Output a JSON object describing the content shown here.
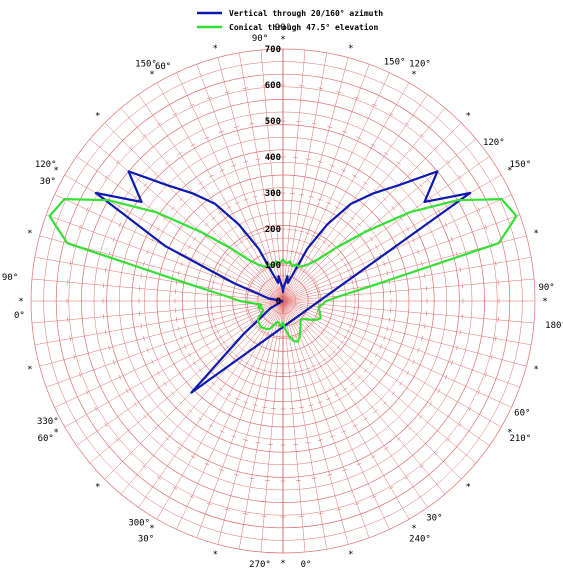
{
  "chart_data": {
    "type": "polar-line",
    "title": "",
    "radial_ticks": [
      0,
      100,
      200,
      300,
      400,
      500,
      600,
      700
    ],
    "radial_max": 700,
    "radial_tick_labels": [
      "0",
      "100",
      "200",
      "300",
      "400",
      "500",
      "600",
      "700"
    ],
    "legend_placement": "top-center",
    "grid": true,
    "series": [
      {
        "name": "Vertical through 20/160° azimuth",
        "color": "#0c1ab0",
        "points": [
          [
            30,
            600
          ],
          [
            35,
            480
          ],
          [
            40,
            560
          ],
          [
            45,
            455
          ],
          [
            50,
            390
          ],
          [
            55,
            330
          ],
          [
            60,
            245
          ],
          [
            65,
            160
          ],
          [
            70,
            75
          ],
          [
            75,
            52
          ],
          [
            80,
            70
          ],
          [
            85,
            44
          ],
          [
            88,
            35
          ],
          [
            90,
            25
          ],
          [
            92,
            35
          ],
          [
            95,
            44
          ],
          [
            100,
            70
          ],
          [
            105,
            52
          ],
          [
            110,
            75
          ],
          [
            115,
            160
          ],
          [
            120,
            245
          ],
          [
            125,
            330
          ],
          [
            130,
            390
          ],
          [
            135,
            455
          ],
          [
            140,
            560
          ],
          [
            145,
            480
          ],
          [
            150,
            600
          ],
          [
            155,
            360
          ],
          [
            160,
            145
          ],
          [
            170,
            40
          ],
          [
            180,
            2
          ],
          [
            190,
            2
          ],
          [
            200,
            2
          ],
          [
            210,
            40
          ],
          [
            220,
            145
          ],
          [
            225,
            360
          ]
        ]
      },
      {
        "name": "Conical through 47.5° elevation",
        "color": "#33e033",
        "points": [
          [
            0,
            120
          ],
          [
            5,
            160
          ],
          [
            10,
            260
          ],
          [
            15,
            620
          ],
          [
            18,
            660
          ],
          [
            20,
            690
          ],
          [
            25,
            670
          ],
          [
            30,
            560
          ],
          [
            35,
            430
          ],
          [
            40,
            300
          ],
          [
            45,
            210
          ],
          [
            50,
            150
          ],
          [
            55,
            125
          ],
          [
            60,
            112
          ],
          [
            65,
            105
          ],
          [
            70,
            108
          ],
          [
            75,
            100
          ],
          [
            80,
            112
          ],
          [
            85,
            105
          ],
          [
            90,
            115
          ],
          [
            95,
            105
          ],
          [
            100,
            112
          ],
          [
            105,
            100
          ],
          [
            110,
            108
          ],
          [
            115,
            105
          ],
          [
            120,
            112
          ],
          [
            125,
            125
          ],
          [
            130,
            150
          ],
          [
            135,
            210
          ],
          [
            140,
            300
          ],
          [
            145,
            430
          ],
          [
            150,
            560
          ],
          [
            155,
            670
          ],
          [
            160,
            690
          ],
          [
            162,
            660
          ],
          [
            165,
            620
          ],
          [
            170,
            260
          ],
          [
            175,
            160
          ],
          [
            180,
            120
          ],
          [
            185,
            80
          ],
          [
            190,
            60
          ],
          [
            195,
            72
          ],
          [
            200,
            62
          ],
          [
            205,
            60
          ],
          [
            210,
            70
          ],
          [
            215,
            85
          ],
          [
            220,
            90
          ],
          [
            225,
            92
          ],
          [
            230,
            95
          ],
          [
            235,
            92
          ],
          [
            240,
            90
          ],
          [
            245,
            85
          ],
          [
            250,
            70
          ],
          [
            255,
            60
          ],
          [
            260,
            62
          ],
          [
            265,
            72
          ],
          [
            270,
            60
          ],
          [
            275,
            80
          ],
          [
            280,
            100
          ],
          [
            285,
            115
          ],
          [
            290,
            120
          ],
          [
            295,
            110
          ],
          [
            300,
            95
          ],
          [
            305,
            85
          ],
          [
            310,
            75
          ],
          [
            315,
            72
          ],
          [
            320,
            78
          ],
          [
            325,
            90
          ],
          [
            330,
            105
          ],
          [
            335,
            115
          ],
          [
            340,
            110
          ],
          [
            345,
            105
          ],
          [
            350,
            100
          ],
          [
            355,
            110
          ]
        ]
      }
    ],
    "angle_labels_outer": [
      {
        "text": "90°",
        "angle": 90
      },
      {
        "text": "120°",
        "angle": 60
      },
      {
        "text": "150°",
        "angle": 30
      },
      {
        "text": "180°",
        "angle": -5
      },
      {
        "text": "210°",
        "angle": -30
      },
      {
        "text": "240°",
        "angle": -60
      },
      {
        "text": "0°",
        "angle": -90
      },
      {
        "text": "30°",
        "angle": -120
      },
      {
        "text": "60°",
        "angle": -150
      },
      {
        "text": "90°",
        "angle": 175
      },
      {
        "text": "120°",
        "angle": 150
      },
      {
        "text": "150°",
        "angle": 120
      }
    ],
    "angle_labels_inner": [
      {
        "text": "90°",
        "angle": 95
      },
      {
        "text": "150°",
        "angle": 65
      },
      {
        "text": "120°",
        "angle": 37
      },
      {
        "text": "90°",
        "angle": 3
      },
      {
        "text": "60°",
        "angle": -25
      },
      {
        "text": "30°",
        "angle": -55
      },
      {
        "text": "0°",
        "angle": -85
      },
      {
        "text": "270°",
        "angle": -95
      },
      {
        "text": "300°",
        "angle": -123
      },
      {
        "text": "330°",
        "angle": -153
      },
      {
        "text": "0°",
        "angle": 183
      },
      {
        "text": "30°",
        "angle": 153
      },
      {
        "text": "60°",
        "angle": 117
      }
    ]
  },
  "legend": {
    "items": [
      {
        "label": "Vertical through 20/160° azimuth",
        "color": "#0c1ab0"
      },
      {
        "label": "Conical through 47.5° elevation",
        "color": "#33e033"
      }
    ]
  }
}
